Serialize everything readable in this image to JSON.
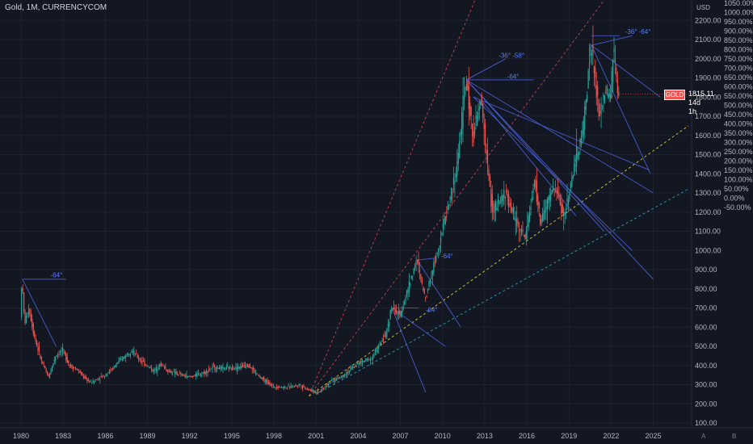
{
  "header": {
    "title": "Gold, 1M, CURRENCYCOM"
  },
  "price_axis_unit": "USD",
  "price_tag": {
    "symbol": "GOLD",
    "value": "1815.11",
    "timer": "14d 1h"
  },
  "corner_buttons": {
    "auto": "A",
    "log": "B"
  },
  "annotations": [
    "-64°",
    "-64°",
    "-64°",
    "-36° -58°",
    "-64°",
    "-36° -64°"
  ],
  "colors": {
    "background": "#131722",
    "up": "#26a69a",
    "down": "#ef5350",
    "trend_red": "#d0445a",
    "trend_yellow": "#e8d63a",
    "trend_cyan": "#2aa6b8",
    "fan_blue": "#4a5fd6"
  },
  "chart_data": {
    "type": "candlestick",
    "title": "Gold, 1M, CURRENCYCOM",
    "ylabel": "USD",
    "xlim": [
      1980,
      2027
    ],
    "ylim": [
      100,
      2300
    ],
    "x_ticks": [
      "1980",
      "1983",
      "1986",
      "1989",
      "1992",
      "1995",
      "1998",
      "2001",
      "2004",
      "2007",
      "2010",
      "2013",
      "2016",
      "2019",
      "2022",
      "2025"
    ],
    "y_ticks": [
      "100.00",
      "200.00",
      "300.00",
      "400.00",
      "500.00",
      "600.00",
      "700.00",
      "800.00",
      "900.00",
      "1000.00",
      "1100.00",
      "1200.00",
      "1300.00",
      "1400.00",
      "1500.00",
      "1600.00",
      "1700.00",
      "1800.00",
      "1900.00",
      "2000.00",
      "2100.00",
      "2200.00"
    ],
    "pct_ticks": [
      "1050.00%",
      "1000.00%",
      "950.00%",
      "900.00%",
      "850.00%",
      "800.00%",
      "750.00%",
      "700.00%",
      "650.00%",
      "600.00%",
      "550.00%",
      "500.00%",
      "450.00%",
      "400.00%",
      "350.00%",
      "300.00%",
      "250.00%",
      "200.00%",
      "150.00%",
      "100.00%",
      "50.00%",
      "0.00%",
      "-50.00%"
    ],
    "pct_values": [
      1050,
      1000,
      950,
      900,
      850,
      800,
      750,
      700,
      650,
      600,
      550,
      500,
      450,
      400,
      350,
      300,
      250,
      200,
      150,
      100,
      50,
      0,
      -50
    ],
    "price_path": [
      [
        1980.0,
        650
      ],
      [
        1980.1,
        850
      ],
      [
        1980.3,
        620
      ],
      [
        1980.6,
        700
      ],
      [
        1981.0,
        550
      ],
      [
        1981.5,
        420
      ],
      [
        1982.0,
        340
      ],
      [
        1982.5,
        450
      ],
      [
        1983.0,
        480
      ],
      [
        1983.5,
        400
      ],
      [
        1984.0,
        380
      ],
      [
        1984.5,
        340
      ],
      [
        1985.0,
        310
      ],
      [
        1985.5,
        330
      ],
      [
        1986.0,
        350
      ],
      [
        1986.5,
        380
      ],
      [
        1987.0,
        420
      ],
      [
        1987.9,
        480
      ],
      [
        1988.5,
        430
      ],
      [
        1989.0,
        400
      ],
      [
        1989.5,
        370
      ],
      [
        1990.0,
        410
      ],
      [
        1990.5,
        370
      ],
      [
        1991.0,
        360
      ],
      [
        1992.0,
        340
      ],
      [
        1993.0,
        360
      ],
      [
        1993.7,
        390
      ],
      [
        1994.5,
        385
      ],
      [
        1995.5,
        390
      ],
      [
        1996.2,
        405
      ],
      [
        1997.0,
        340
      ],
      [
        1998.0,
        290
      ],
      [
        1999.0,
        285
      ],
      [
        1999.8,
        300
      ],
      [
        2000.5,
        275
      ],
      [
        2001.2,
        260
      ],
      [
        2002.0,
        310
      ],
      [
        2003.0,
        350
      ],
      [
        2004.0,
        410
      ],
      [
        2005.0,
        440
      ],
      [
        2006.0,
        560
      ],
      [
        2006.4,
        700
      ],
      [
        2007.0,
        660
      ],
      [
        2008.2,
        950
      ],
      [
        2008.8,
        750
      ],
      [
        2009.5,
        950
      ],
      [
        2010.0,
        1100
      ],
      [
        2011.0,
        1400
      ],
      [
        2011.7,
        1890
      ],
      [
        2012.2,
        1600
      ],
      [
        2012.8,
        1780
      ],
      [
        2013.3,
        1400
      ],
      [
        2013.6,
        1200
      ],
      [
        2014.5,
        1300
      ],
      [
        2015.0,
        1200
      ],
      [
        2015.9,
        1060
      ],
      [
        2016.6,
        1360
      ],
      [
        2017.0,
        1150
      ],
      [
        2018.0,
        1340
      ],
      [
        2018.7,
        1180
      ],
      [
        2019.6,
        1500
      ],
      [
        2020.0,
        1600
      ],
      [
        2020.6,
        2070
      ],
      [
        2021.2,
        1700
      ],
      [
        2021.6,
        1820
      ],
      [
        2022.0,
        1800
      ],
      [
        2022.2,
        2070
      ],
      [
        2022.5,
        1815
      ]
    ]
  }
}
